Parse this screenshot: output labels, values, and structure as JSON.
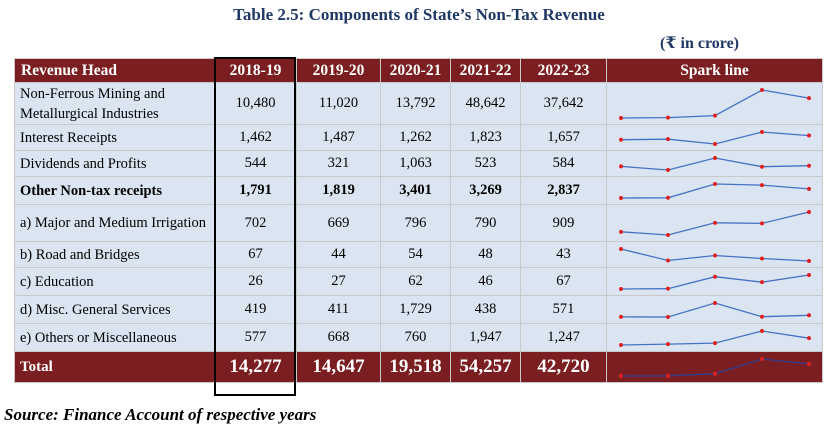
{
  "title": "Table 2.5: Components of State’s Non-Tax Revenue",
  "unit": "(₹ in crore)",
  "columns": [
    "Revenue Head",
    "2018-19",
    "2019-20",
    "2020-21",
    "2021-22",
    "2022-23",
    "Spark line"
  ],
  "rows": [
    {
      "label": "Non-Ferrous Mining and Metallurgical Industries",
      "values": [
        "10,480",
        "11,020",
        "13,792",
        "48,642",
        "37,642"
      ],
      "nums": [
        10480,
        11020,
        13792,
        48642,
        37642
      ],
      "bold": false
    },
    {
      "label": "Interest Receipts",
      "values": [
        "1,462",
        "1,487",
        "1,262",
        "1,823",
        "1,657"
      ],
      "nums": [
        1462,
        1487,
        1262,
        1823,
        1657
      ],
      "bold": false
    },
    {
      "label": "Dividends and Profits",
      "values": [
        "544",
        "321",
        "1,063",
        "523",
        "584"
      ],
      "nums": [
        544,
        321,
        1063,
        523,
        584
      ],
      "bold": false
    },
    {
      "label": "Other Non-tax receipts",
      "values": [
        "1,791",
        "1,819",
        "3,401",
        "3,269",
        "2,837"
      ],
      "nums": [
        1791,
        1819,
        3401,
        3269,
        2837
      ],
      "bold": true
    },
    {
      "label": "a) Major and Medium Irrigation",
      "values": [
        "702",
        "669",
        "796",
        "790",
        "909"
      ],
      "nums": [
        702,
        669,
        796,
        790,
        909
      ],
      "bold": false
    },
    {
      "label": "b) Road and Bridges",
      "values": [
        "67",
        "44",
        "54",
        "48",
        "43"
      ],
      "nums": [
        67,
        44,
        54,
        48,
        43
      ],
      "bold": false
    },
    {
      "label": "c) Education",
      "values": [
        "26",
        "27",
        "62",
        "46",
        "67"
      ],
      "nums": [
        26,
        27,
        62,
        46,
        67
      ],
      "bold": false
    },
    {
      "label": "d) Misc. General Services",
      "values": [
        "419",
        "411",
        "1,729",
        "438",
        "571"
      ],
      "nums": [
        419,
        411,
        1729,
        438,
        571
      ],
      "bold": false
    },
    {
      "label": "e) Others or Miscellaneous",
      "values": [
        "577",
        "668",
        "760",
        "1,947",
        "1,247"
      ],
      "nums": [
        577,
        668,
        760,
        1947,
        1247
      ],
      "bold": false
    }
  ],
  "total": {
    "label": "Total",
    "values": [
      "14,277",
      "14,647",
      "19,518",
      "54,257",
      "42,720"
    ],
    "nums": [
      14277,
      14647,
      19518,
      54257,
      42720
    ]
  },
  "source": "Source: Finance Account of respective years",
  "colors": {
    "header_bg": "#7b1e21",
    "row_bg": "#dbe5f1",
    "title": "#1f3864",
    "spark_line": "#4472c4",
    "spark_marker": "#e02020"
  }
}
